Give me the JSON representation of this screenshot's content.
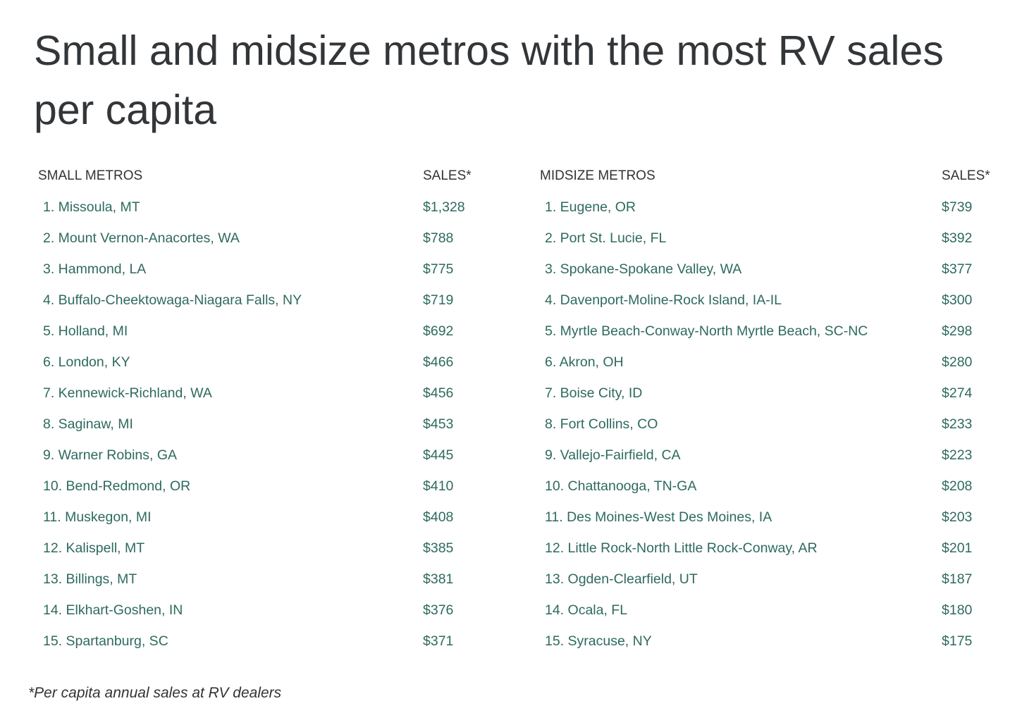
{
  "title": "Small and midsize metros with the most RV sales per capita",
  "small": {
    "header_name": "SMALL METROS",
    "header_sales": "SALES*",
    "rows": [
      {
        "name": "1. Missoula, MT",
        "sales": "$1,328"
      },
      {
        "name": "2. Mount Vernon-Anacortes, WA",
        "sales": "$788"
      },
      {
        "name": "3. Hammond, LA",
        "sales": "$775"
      },
      {
        "name": "4. Buffalo-Cheektowaga-Niagara Falls, NY",
        "sales": "$719"
      },
      {
        "name": "5. Holland, MI",
        "sales": "$692"
      },
      {
        "name": "6. London, KY",
        "sales": "$466"
      },
      {
        "name": "7. Kennewick-Richland, WA",
        "sales": "$456"
      },
      {
        "name": "8. Saginaw, MI",
        "sales": "$453"
      },
      {
        "name": "9. Warner Robins, GA",
        "sales": "$445"
      },
      {
        "name": "10. Bend-Redmond, OR",
        "sales": "$410"
      },
      {
        "name": "11. Muskegon, MI",
        "sales": "$408"
      },
      {
        "name": "12. Kalispell, MT",
        "sales": "$385"
      },
      {
        "name": "13. Billings, MT",
        "sales": "$381"
      },
      {
        "name": "14. Elkhart-Goshen, IN",
        "sales": "$376"
      },
      {
        "name": "15. Spartanburg, SC",
        "sales": "$371"
      }
    ]
  },
  "midsize": {
    "header_name": "MIDSIZE METROS",
    "header_sales": "SALES*",
    "rows": [
      {
        "name": "1. Eugene, OR",
        "sales": "$739"
      },
      {
        "name": "2. Port St. Lucie, FL",
        "sales": "$392"
      },
      {
        "name": "3. Spokane-Spokane Valley, WA",
        "sales": "$377"
      },
      {
        "name": "4. Davenport-Moline-Rock Island, IA-IL",
        "sales": "$300"
      },
      {
        "name": "5. Myrtle Beach-Conway-North Myrtle Beach, SC-NC",
        "sales": "$298"
      },
      {
        "name": "6. Akron, OH",
        "sales": "$280"
      },
      {
        "name": "7. Boise City, ID",
        "sales": "$274"
      },
      {
        "name": "8. Fort Collins, CO",
        "sales": "$233"
      },
      {
        "name": "9. Vallejo-Fairfield, CA",
        "sales": "$223"
      },
      {
        "name": "10. Chattanooga, TN-GA",
        "sales": "$208"
      },
      {
        "name": "11. Des Moines-West Des Moines, IA",
        "sales": "$203"
      },
      {
        "name": "12. Little Rock-North Little Rock-Conway, AR",
        "sales": "$201"
      },
      {
        "name": "13. Ogden-Clearfield, UT",
        "sales": "$187"
      },
      {
        "name": "14. Ocala, FL",
        "sales": "$180"
      },
      {
        "name": "15. Syracuse, NY",
        "sales": "$175"
      }
    ]
  },
  "footnote": "*Per capita annual sales at RV dealers",
  "colors": {
    "title": "#333639",
    "row_text": "#2e6a5e",
    "header_text": "#333333"
  }
}
